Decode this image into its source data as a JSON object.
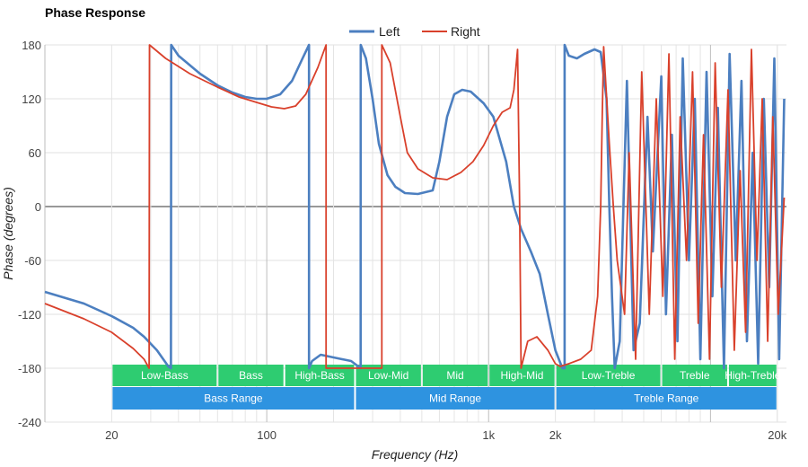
{
  "chart_data": {
    "type": "line",
    "title": "Phase Response",
    "xlabel": "Frequency (Hz)",
    "ylabel": "Phase (degrees)",
    "x_scale": "log",
    "xlim": [
      10,
      22000
    ],
    "ylim": [
      -240,
      180
    ],
    "x_ticks": [
      {
        "value": 20,
        "label": "20"
      },
      {
        "value": 100,
        "label": "100"
      },
      {
        "value": 1000,
        "label": "1k"
      },
      {
        "value": 2000,
        "label": "2k"
      },
      {
        "value": 20000,
        "label": "20k"
      }
    ],
    "y_ticks": [
      180,
      120,
      60,
      0,
      -60,
      -120,
      -180,
      -240
    ],
    "grid": true,
    "legend_position": "top-center",
    "series": [
      {
        "name": "Left",
        "color": "#4c7fc0",
        "points": [
          [
            10,
            -95
          ],
          [
            15,
            -108
          ],
          [
            20,
            -122
          ],
          [
            25,
            -135
          ],
          [
            28,
            -145
          ],
          [
            32,
            -160
          ],
          [
            36,
            -178
          ],
          [
            37,
            -180
          ],
          [
            37.1,
            180
          ],
          [
            40,
            168
          ],
          [
            50,
            148
          ],
          [
            60,
            135
          ],
          [
            70,
            127
          ],
          [
            80,
            122
          ],
          [
            90,
            120
          ],
          [
            100,
            120
          ],
          [
            115,
            125
          ],
          [
            130,
            140
          ],
          [
            145,
            165
          ],
          [
            155,
            180
          ],
          [
            155.1,
            -180
          ],
          [
            160,
            -172
          ],
          [
            175,
            -165
          ],
          [
            200,
            -168
          ],
          [
            240,
            -172
          ],
          [
            265,
            -180
          ],
          [
            265.1,
            180
          ],
          [
            280,
            165
          ],
          [
            300,
            120
          ],
          [
            320,
            70
          ],
          [
            350,
            35
          ],
          [
            380,
            22
          ],
          [
            420,
            15
          ],
          [
            480,
            14
          ],
          [
            560,
            18
          ],
          [
            600,
            50
          ],
          [
            650,
            100
          ],
          [
            700,
            125
          ],
          [
            760,
            130
          ],
          [
            830,
            128
          ],
          [
            950,
            115
          ],
          [
            1050,
            100
          ],
          [
            1200,
            50
          ],
          [
            1300,
            0
          ],
          [
            1400,
            -25
          ],
          [
            1550,
            -50
          ],
          [
            1700,
            -75
          ],
          [
            1850,
            -120
          ],
          [
            2000,
            -160
          ],
          [
            2150,
            -180
          ],
          [
            2200,
            -180
          ],
          [
            2200.1,
            180
          ],
          [
            2300,
            168
          ],
          [
            2500,
            165
          ],
          [
            2700,
            170
          ],
          [
            3000,
            175
          ],
          [
            3200,
            172
          ],
          [
            3400,
            120
          ],
          [
            3500,
            0
          ],
          [
            3600,
            -100
          ],
          [
            3700,
            -180
          ],
          [
            3900,
            -150
          ],
          [
            4200,
            140
          ],
          [
            4500,
            -160
          ],
          [
            4800,
            -130
          ],
          [
            5200,
            100
          ],
          [
            5500,
            -50
          ],
          [
            6000,
            145
          ],
          [
            6300,
            -120
          ],
          [
            6700,
            80
          ],
          [
            7100,
            -150
          ],
          [
            7500,
            165
          ],
          [
            8000,
            -60
          ],
          [
            8500,
            120
          ],
          [
            9000,
            -170
          ],
          [
            9600,
            150
          ],
          [
            10200,
            -100
          ],
          [
            10800,
            110
          ],
          [
            11500,
            -180
          ],
          [
            12200,
            170
          ],
          [
            13000,
            -60
          ],
          [
            13800,
            140
          ],
          [
            14600,
            -150
          ],
          [
            15500,
            60
          ],
          [
            16400,
            -175
          ],
          [
            17400,
            120
          ],
          [
            18400,
            -90
          ],
          [
            19400,
            165
          ],
          [
            20400,
            -170
          ],
          [
            21500,
            120
          ]
        ]
      },
      {
        "name": "Right",
        "color": "#d9402b",
        "points": [
          [
            10,
            -108
          ],
          [
            15,
            -125
          ],
          [
            20,
            -140
          ],
          [
            25,
            -158
          ],
          [
            28,
            -170
          ],
          [
            29.5,
            -180
          ],
          [
            29.6,
            180
          ],
          [
            35,
            165
          ],
          [
            45,
            148
          ],
          [
            60,
            133
          ],
          [
            75,
            122
          ],
          [
            90,
            116
          ],
          [
            105,
            111
          ],
          [
            120,
            109
          ],
          [
            135,
            112
          ],
          [
            150,
            125
          ],
          [
            170,
            155
          ],
          [
            185,
            180
          ],
          [
            185.1,
            -180
          ],
          [
            220,
            -180
          ],
          [
            230,
            -180
          ],
          [
            330,
            -180
          ],
          [
            330.1,
            180
          ],
          [
            360,
            160
          ],
          [
            400,
            100
          ],
          [
            430,
            60
          ],
          [
            480,
            42
          ],
          [
            560,
            32
          ],
          [
            650,
            30
          ],
          [
            750,
            38
          ],
          [
            850,
            50
          ],
          [
            950,
            68
          ],
          [
            1050,
            90
          ],
          [
            1150,
            105
          ],
          [
            1250,
            110
          ],
          [
            1300,
            130
          ],
          [
            1350,
            175
          ],
          [
            1380,
            0
          ],
          [
            1400,
            -180
          ],
          [
            1500,
            -150
          ],
          [
            1650,
            -145
          ],
          [
            1850,
            -160
          ],
          [
            2000,
            -175
          ],
          [
            2100,
            -178
          ],
          [
            2300,
            -175
          ],
          [
            2600,
            -170
          ],
          [
            2900,
            -160
          ],
          [
            3100,
            -100
          ],
          [
            3200,
            0
          ],
          [
            3250,
            100
          ],
          [
            3300,
            178
          ],
          [
            3350,
            150
          ],
          [
            3500,
            70
          ],
          [
            3650,
            0
          ],
          [
            3800,
            -60
          ],
          [
            4100,
            -120
          ],
          [
            4300,
            60
          ],
          [
            4600,
            -170
          ],
          [
            4900,
            150
          ],
          [
            5300,
            -120
          ],
          [
            5700,
            120
          ],
          [
            6100,
            -100
          ],
          [
            6500,
            170
          ],
          [
            6900,
            -170
          ],
          [
            7300,
            100
          ],
          [
            7800,
            -60
          ],
          [
            8300,
            150
          ],
          [
            8800,
            -130
          ],
          [
            9300,
            80
          ],
          [
            9900,
            -170
          ],
          [
            10500,
            160
          ],
          [
            11200,
            -90
          ],
          [
            12000,
            130
          ],
          [
            12800,
            -160
          ],
          [
            13600,
            40
          ],
          [
            14400,
            -140
          ],
          [
            15300,
            175
          ],
          [
            16200,
            -60
          ],
          [
            17100,
            120
          ],
          [
            18100,
            -150
          ],
          [
            19100,
            100
          ],
          [
            20200,
            -120
          ],
          [
            21500,
            10
          ]
        ]
      }
    ],
    "bands": [
      {
        "label": "Low-Bass",
        "from": 20,
        "to": 60,
        "row": 1
      },
      {
        "label": "Bass",
        "from": 60,
        "to": 120,
        "row": 1
      },
      {
        "label": "High-Bass",
        "from": 120,
        "to": 250,
        "row": 1
      },
      {
        "label": "Low-Mid",
        "from": 250,
        "to": 500,
        "row": 1
      },
      {
        "label": "Mid",
        "from": 500,
        "to": 1000,
        "row": 1
      },
      {
        "label": "High-Mid",
        "from": 1000,
        "to": 2000,
        "row": 1
      },
      {
        "label": "Low-Treble",
        "from": 2000,
        "to": 6000,
        "row": 1
      },
      {
        "label": "Treble",
        "from": 6000,
        "to": 12000,
        "row": 1
      },
      {
        "label": "High-Treble",
        "from": 12000,
        "to": 20000,
        "row": 1
      },
      {
        "label": "Bass Range",
        "from": 20,
        "to": 250,
        "row": 2
      },
      {
        "label": "Mid Range",
        "from": 250,
        "to": 2000,
        "row": 2
      },
      {
        "label": "Treble Range",
        "from": 2000,
        "to": 20000,
        "row": 2
      }
    ],
    "band_colors": {
      "row1": "#2ecc71",
      "row2": "#2e93e0"
    }
  }
}
